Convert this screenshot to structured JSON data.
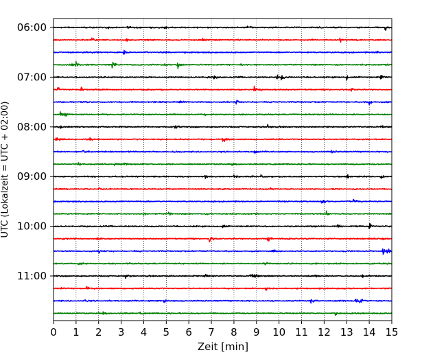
{
  "chart_data": {
    "type": "line",
    "title": "",
    "xlabel": "Zeit  [min]",
    "ylabel": "UTC (Lokalzeit = UTC + 02:00)",
    "xlim": [
      0,
      15
    ],
    "x_ticks": [
      "0",
      "1",
      "2",
      "3",
      "4",
      "5",
      "6",
      "7",
      "8",
      "9",
      "10",
      "11",
      "12",
      "13",
      "14",
      "15"
    ],
    "y_ticks": [
      "06:00",
      "07:00",
      "08:00",
      "09:00",
      "10:00",
      "11:00"
    ],
    "grid": "vertical dotted at each minute",
    "trace_colors": [
      "#000000",
      "#ff0000",
      "#0000ff",
      "#008000"
    ],
    "series": [
      {
        "start": "06:00",
        "events_min": [
          [
            2.3,
            0.5
          ],
          [
            3.3,
            0.4
          ],
          [
            4.9,
            0.4
          ],
          [
            8.6,
            0.5
          ],
          [
            12.3,
            0.5
          ],
          [
            14.7,
            0.9
          ]
        ]
      },
      {
        "start": "06:15",
        "events_min": [
          [
            1.7,
            0.8
          ],
          [
            3.2,
            0.5
          ],
          [
            6.6,
            0.4
          ],
          [
            12.7,
            0.9
          ]
        ]
      },
      {
        "start": "06:30",
        "events_min": [
          [
            1.3,
            0.4
          ],
          [
            3.1,
            0.5
          ],
          [
            5.0,
            0.4
          ],
          [
            14.3,
            0.4
          ]
        ]
      },
      {
        "start": "06:45",
        "events_min": [
          [
            0.8,
            0.5
          ],
          [
            1.0,
            0.6
          ],
          [
            2.6,
            0.7
          ],
          [
            4.9,
            0.6
          ],
          [
            5.5,
            0.9
          ],
          [
            8.3,
            0.4
          ]
        ]
      },
      {
        "start": "07:00",
        "events_min": [
          [
            6.8,
            0.5
          ],
          [
            7.1,
            0.5
          ],
          [
            9.9,
            0.7
          ],
          [
            10.1,
            0.6
          ],
          [
            13.0,
            0.9
          ],
          [
            14.5,
            0.7
          ]
        ]
      },
      {
        "start": "07:15",
        "events_min": [
          [
            0.2,
            0.8
          ],
          [
            1.2,
            0.8
          ],
          [
            8.9,
            1.0
          ],
          [
            13.2,
            0.5
          ]
        ]
      },
      {
        "start": "07:30",
        "events_min": [
          [
            5.6,
            0.4
          ],
          [
            8.1,
            0.6
          ],
          [
            14.0,
            0.6
          ]
        ]
      },
      {
        "start": "07:45",
        "events_min": [
          [
            0.3,
            0.7
          ],
          [
            0.5,
            0.5
          ],
          [
            6.7,
            0.3
          ]
        ]
      },
      {
        "start": "08:00",
        "events_min": [
          [
            0.3,
            0.5
          ],
          [
            5.4,
            0.6
          ],
          [
            9.5,
            1.0
          ],
          [
            14.5,
            0.5
          ]
        ]
      },
      {
        "start": "08:15",
        "events_min": [
          [
            0.1,
            0.5
          ],
          [
            1.6,
            0.8
          ],
          [
            7.5,
            0.9
          ]
        ]
      },
      {
        "start": "08:30",
        "events_min": [
          [
            1.3,
            0.5
          ],
          [
            8.9,
            0.6
          ],
          [
            12.3,
            0.6
          ]
        ]
      },
      {
        "start": "08:45",
        "events_min": [
          [
            1.1,
            0.5
          ],
          [
            2.7,
            0.6
          ],
          [
            3.1,
            0.5
          ],
          [
            7.9,
            0.3
          ]
        ]
      },
      {
        "start": "09:00",
        "events_min": [
          [
            2.9,
            0.5
          ],
          [
            6.7,
            0.6
          ],
          [
            8.0,
            0.5
          ],
          [
            9.2,
            0.5
          ],
          [
            13.0,
            0.5
          ],
          [
            14.5,
            0.6
          ]
        ]
      },
      {
        "start": "09:15",
        "events_min": [
          [
            2.0,
            0.4
          ],
          [
            9.6,
            0.5
          ]
        ]
      },
      {
        "start": "09:30",
        "events_min": [
          [
            11.9,
            0.6
          ],
          [
            13.3,
            0.7
          ]
        ]
      },
      {
        "start": "09:45",
        "events_min": [
          [
            4.0,
            0.4
          ],
          [
            5.1,
            0.6
          ],
          [
            12.1,
            0.7
          ]
        ]
      },
      {
        "start": "10:00",
        "events_min": [
          [
            7.5,
            0.5
          ],
          [
            12.6,
            0.4
          ],
          [
            14.0,
            0.9
          ]
        ]
      },
      {
        "start": "10:15",
        "events_min": [
          [
            0.4,
            0.5
          ],
          [
            1.9,
            0.6
          ],
          [
            6.9,
            1.0
          ],
          [
            9.5,
            0.8
          ],
          [
            14.6,
            0.4
          ]
        ]
      },
      {
        "start": "10:30",
        "events_min": [
          [
            2.0,
            0.7
          ],
          [
            9.7,
            0.5
          ],
          [
            14.6,
            1.0
          ],
          [
            14.8,
            0.8
          ]
        ]
      },
      {
        "start": "10:45",
        "events_min": [
          [
            1.1,
            0.8
          ],
          [
            3.2,
            0.4
          ],
          [
            9.3,
            0.7
          ],
          [
            14.0,
            0.5
          ]
        ]
      },
      {
        "start": "11:00",
        "events_min": [
          [
            3.2,
            0.7
          ],
          [
            6.7,
            0.8
          ],
          [
            8.7,
            1.0
          ],
          [
            8.9,
            0.8
          ],
          [
            11.6,
            0.5
          ],
          [
            13.7,
            0.6
          ]
        ]
      },
      {
        "start": "11:15",
        "events_min": [
          [
            0.3,
            0.5
          ],
          [
            1.4,
            0.9
          ],
          [
            9.4,
            0.5
          ]
        ]
      },
      {
        "start": "11:30",
        "events_min": [
          [
            1.4,
            0.4
          ],
          [
            4.9,
            0.8
          ],
          [
            11.4,
            0.5
          ],
          [
            13.4,
            1.0
          ],
          [
            13.6,
            0.8
          ]
        ]
      },
      {
        "start": "11:45",
        "events_min": [
          [
            2.2,
            0.3
          ],
          [
            3.8,
            0.3
          ],
          [
            12.5,
            0.3
          ]
        ]
      }
    ]
  }
}
